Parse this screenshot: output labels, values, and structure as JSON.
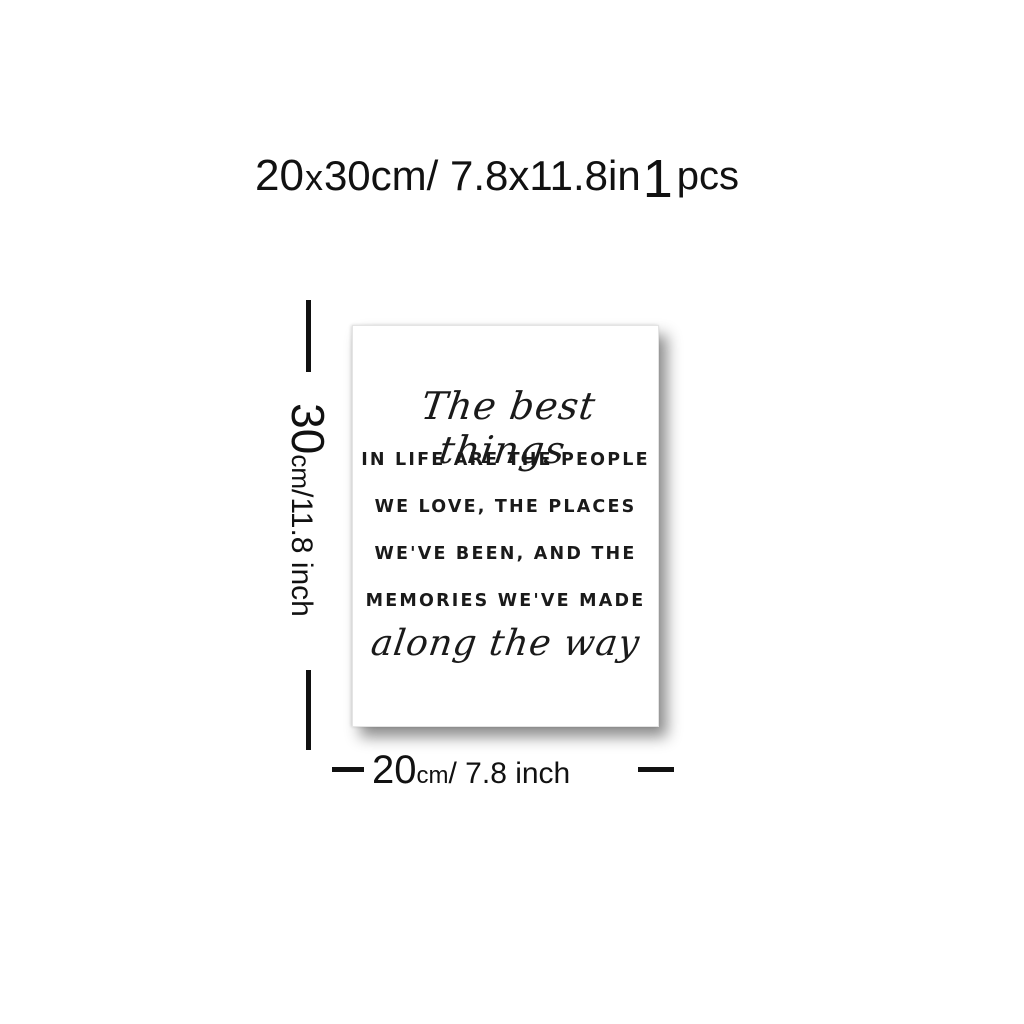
{
  "header": {
    "width_cm": "20",
    "times": "x",
    "height_cm_text": "30cm/ 7.8x11.8in",
    "quantity": "1",
    "quantity_unit": "pcs"
  },
  "height_label": {
    "value": "30",
    "unit": "cm",
    "rest": "/11.8 inch"
  },
  "width_label": {
    "value": "20",
    "unit": "cm",
    "rest": "/ 7.8 inch"
  },
  "poster": {
    "script_top": "The best things",
    "lines": [
      "IN LIFE ARE THE PEOPLE",
      "WE LOVE, THE PLACES",
      "WE'VE BEEN, AND THE",
      "MEMORIES WE'VE MADE"
    ],
    "script_bottom": "along the way"
  }
}
